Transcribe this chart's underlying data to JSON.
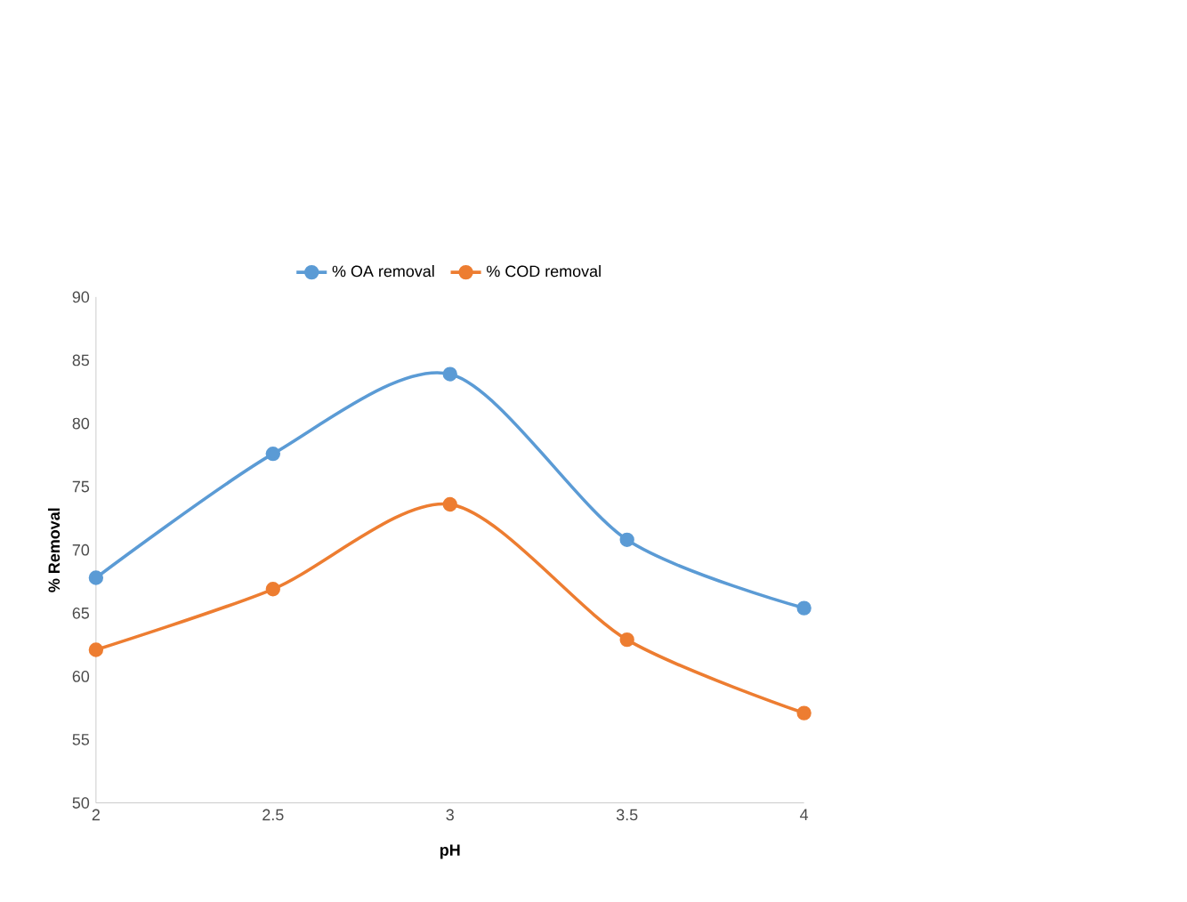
{
  "chart_data": {
    "type": "line",
    "xlabel": "pH",
    "ylabel": "% Removal",
    "x": [
      2,
      2.5,
      3,
      3.5,
      4
    ],
    "series": [
      {
        "name": "% OA removal",
        "color": "#5b9bd5",
        "values": [
          67.8,
          77.6,
          83.9,
          70.8,
          65.4
        ]
      },
      {
        "name": "% COD removal",
        "color": "#ed7d31",
        "values": [
          62.1,
          66.9,
          73.6,
          62.9,
          57.1
        ]
      }
    ],
    "xlim": [
      2,
      4
    ],
    "xticks": [
      2,
      2.5,
      3,
      3.5,
      4
    ],
    "ylim": [
      50,
      90
    ],
    "yticks": [
      50,
      55,
      60,
      65,
      70,
      75,
      80,
      85,
      90
    ],
    "legend": "top",
    "marker": "circle",
    "line_style": "solid",
    "grid": false
  }
}
